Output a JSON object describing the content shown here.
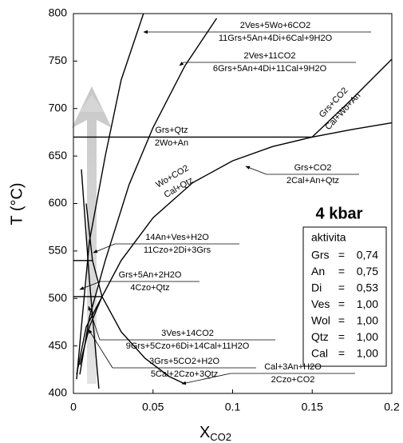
{
  "chart_data": {
    "type": "line",
    "xlabel": "X",
    "xlabel_sub": "CO2",
    "ylabel": "T (°C)",
    "xlim": [
      0,
      0.2
    ],
    "xticks": [
      0,
      0.05,
      0.1,
      0.15,
      0.2
    ],
    "ylim": [
      400,
      800
    ],
    "yticks": [
      400,
      450,
      500,
      550,
      600,
      650,
      700,
      750,
      800
    ],
    "color": "#000000",
    "curves": [
      {
        "x": [
          0.004,
          0.01,
          0.018,
          0.03,
          0.05,
          0.075,
          0.1,
          0.125,
          0.15,
          0.175,
          0.2
        ],
        "y": [
          430,
          470,
          502,
          540,
          585,
          622,
          645,
          660,
          670,
          678,
          685
        ]
      },
      {
        "x": [
          0.15,
          0.175,
          0.2
        ],
        "y": [
          670,
          710,
          752
        ]
      },
      {
        "x": [
          0,
          0.15
        ],
        "y": [
          670,
          670
        ]
      },
      {
        "x": [
          0.004,
          0.01,
          0.02,
          0.035,
          0.05,
          0.07,
          0.09
        ],
        "y": [
          420,
          480,
          540,
          620,
          680,
          745,
          795
        ]
      },
      {
        "x": [
          0.002,
          0.005,
          0.01,
          0.02,
          0.03,
          0.044
        ],
        "y": [
          415,
          470,
          560,
          650,
          730,
          800
        ]
      },
      {
        "x": [
          0.008,
          0.012,
          0.018,
          0.03,
          0.045,
          0.06,
          0.07
        ],
        "y": [
          600,
          540,
          502,
          465,
          437,
          418,
          410
        ]
      },
      {
        "x": [
          0.005,
          0.01,
          0.016
        ],
        "y": [
          636,
          520,
          405
        ]
      },
      {
        "x": [
          0.002,
          0.008,
          0.018
        ],
        "y": [
          420,
          470,
          502
        ]
      },
      {
        "x": [
          0,
          0.012
        ],
        "y": [
          540,
          540
        ]
      },
      {
        "x": [
          0,
          0.018
        ],
        "y": [
          502,
          502
        ]
      }
    ],
    "annotations": [
      {
        "top": "2Ves+5Wo+6CO2",
        "bottom": "11Grs+5An+4Di+6Cal+9H2O"
      },
      {
        "top": "2Ves+11CO2",
        "bottom": "6Grs+5An+4Di+11Cal+9H2O"
      },
      {
        "top": "Grs+Qtz",
        "bottom": "2Wo+An"
      },
      {
        "top": "Grs+CO2",
        "bottom": "Cal+Wo+An"
      },
      {
        "top": "Wo+CO2",
        "bottom": "Cal+Qtz"
      },
      {
        "top": "Grs+CO2",
        "bottom": "2Cal+An+Qtz"
      },
      {
        "top": "14An+Ves+H2O",
        "bottom": "11Czo+2Di+3Grs"
      },
      {
        "top": "Grs+5An+2H2O",
        "bottom": "4Czo+Qtz"
      },
      {
        "top": "3Ves+14CO2",
        "bottom": "9Grs+5Czo+6Di+14Cal+11H2O"
      },
      {
        "top": "3Grs+5CO2+H2O",
        "bottom": "5Cal+2Czo+3Qtz"
      },
      {
        "top": "Cal+3An+H2O",
        "bottom": "2Czo+CO2"
      }
    ],
    "inset": {
      "pressure": "4 kbar",
      "heading": "aktivita",
      "separator": "=",
      "rows": [
        {
          "phase": "Grs",
          "value": "0,74"
        },
        {
          "phase": "An",
          "value": "0,75"
        },
        {
          "phase": "Di",
          "value": "0,53"
        },
        {
          "phase": "Ves",
          "value": "1,00"
        },
        {
          "phase": "Wol",
          "value": "1,00"
        },
        {
          "phase": "Qtz",
          "value": "1,00"
        },
        {
          "phase": "Cal",
          "value": "1,00"
        }
      ]
    }
  }
}
